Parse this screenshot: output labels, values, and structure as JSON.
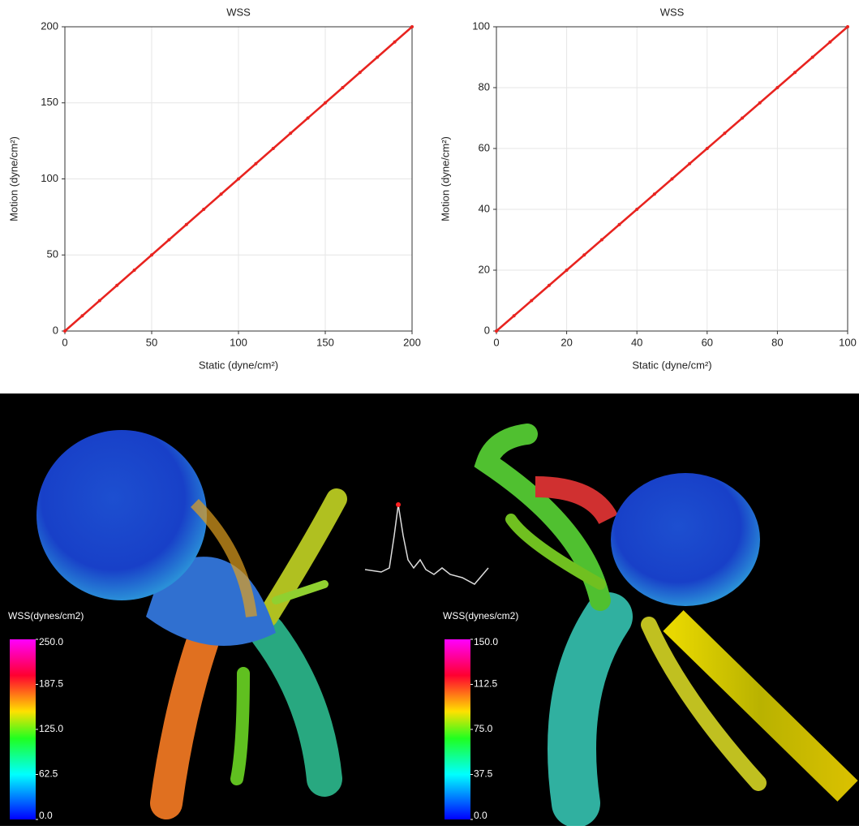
{
  "chart_data": [
    {
      "type": "scatter",
      "title": "WSS",
      "x_label": "Static (dyne/cm²)",
      "y_label": "Motion (dyne/cm²)",
      "xlim": [
        0,
        200
      ],
      "ylim": [
        0,
        200
      ],
      "xticks": [
        0,
        50,
        100,
        150,
        200
      ],
      "yticks": [
        0,
        50,
        100,
        150,
        200
      ],
      "grid": true,
      "series": [
        {
          "color": "#e8231f",
          "x": [
            0,
            10,
            20,
            30,
            40,
            50,
            60,
            70,
            80,
            90,
            100,
            110,
            120,
            130,
            140,
            150,
            160,
            170,
            180,
            190,
            200
          ],
          "values": [
            0,
            10,
            20,
            30,
            40,
            50,
            60,
            70,
            80,
            90,
            100,
            110,
            120,
            130,
            140,
            150,
            160,
            170,
            180,
            190,
            200
          ]
        }
      ]
    },
    {
      "type": "scatter",
      "title": "WSS",
      "x_label": "Static (dyne/cm²)",
      "y_label": "Motion (dyne/cm²)",
      "xlim": [
        0,
        100
      ],
      "ylim": [
        0,
        100
      ],
      "xticks": [
        0,
        20,
        40,
        60,
        80,
        100
      ],
      "yticks": [
        0,
        20,
        40,
        60,
        80,
        100
      ],
      "grid": true,
      "series": [
        {
          "color": "#e8231f",
          "x": [
            0,
            5,
            10,
            15,
            20,
            25,
            30,
            35,
            40,
            45,
            50,
            55,
            60,
            65,
            70,
            75,
            80,
            85,
            90,
            95,
            100
          ],
          "values": [
            0,
            5,
            10,
            15,
            20,
            25,
            30,
            35,
            40,
            45,
            50,
            55,
            60,
            65,
            70,
            75,
            80,
            85,
            90,
            95,
            100
          ]
        }
      ]
    }
  ],
  "colorbars": [
    {
      "title": "WSS(dynes/cm2)",
      "range": [
        0,
        250
      ],
      "ticks": [
        {
          "value": 250,
          "label": "250.0"
        },
        {
          "value": 187.5,
          "label": "187.5"
        },
        {
          "value": 125,
          "label": "125.0"
        },
        {
          "value": 62.5,
          "label": "62.5"
        },
        {
          "value": 0,
          "label": "0.0"
        }
      ]
    },
    {
      "title": "WSS(dynes/cm2)",
      "range": [
        0,
        150
      ],
      "ticks": [
        {
          "value": 150,
          "label": "150.0"
        },
        {
          "value": 112.5,
          "label": "112.5"
        },
        {
          "value": 75,
          "label": "75.0"
        },
        {
          "value": 37.5,
          "label": "37.5"
        },
        {
          "value": 0,
          "label": "0.0"
        }
      ]
    }
  ]
}
